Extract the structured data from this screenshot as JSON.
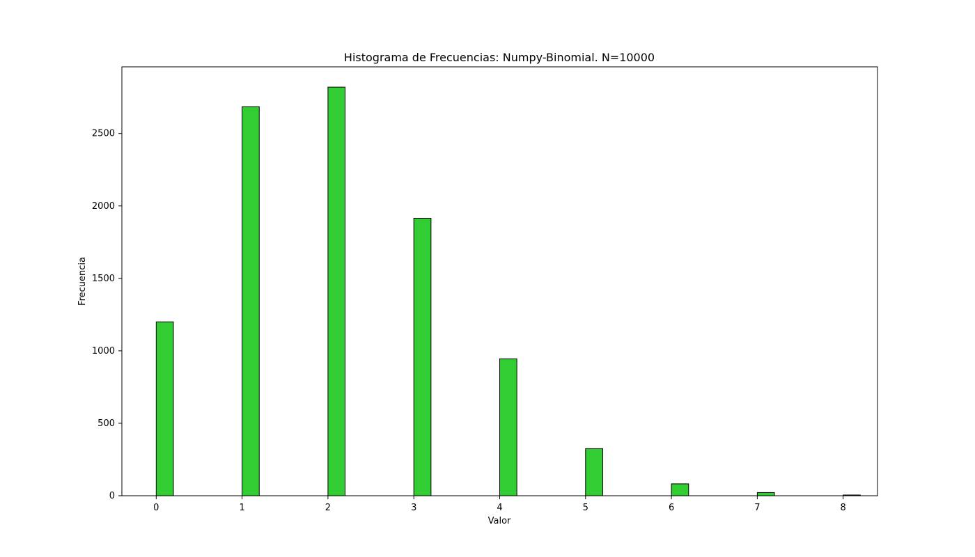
{
  "chart_data": {
    "type": "bar",
    "title": "Histograma de Frecuencias: Numpy-Binomial. N=10000",
    "xlabel": "Valor",
    "ylabel": "Frecuencia",
    "xlim": [
      -0.4,
      8.4
    ],
    "ylim": [
      0,
      2960
    ],
    "x_ticks": [
      0,
      1,
      2,
      3,
      4,
      5,
      6,
      7,
      8
    ],
    "y_ticks": [
      0,
      500,
      1000,
      1500,
      2000,
      2500
    ],
    "bar_width": 0.2,
    "categories": [
      0,
      1,
      2,
      3,
      4,
      5,
      6,
      7,
      8
    ],
    "values": [
      1200,
      2685,
      2820,
      1915,
      945,
      325,
      82,
      22,
      5
    ],
    "grid": false,
    "colors": {
      "bar_fill": "#32cd32",
      "bar_edge": "#000000",
      "axes": "#000000"
    }
  }
}
